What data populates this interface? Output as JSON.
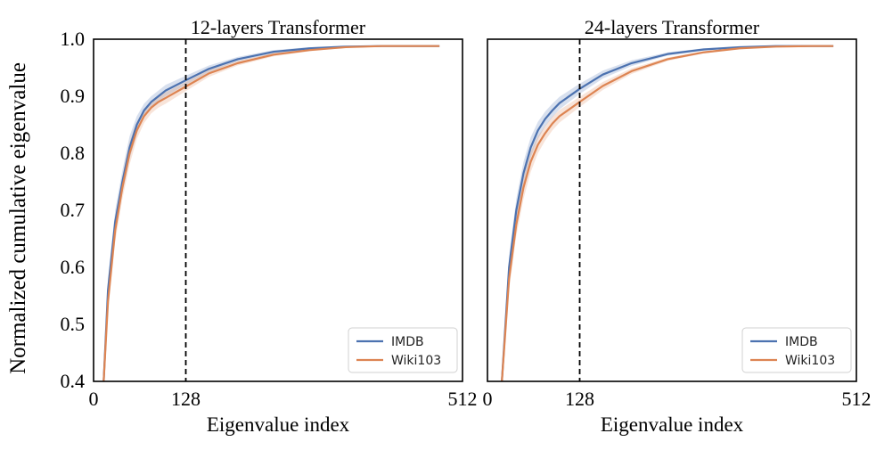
{
  "figure": {
    "ylabel": "Normalized cumulative eigenvalue"
  },
  "chart_data": [
    {
      "type": "line",
      "title": "12-layers Transformer",
      "xlabel": "Eigenvalue index",
      "ylabel": "Normalized cumulative eigenvalue",
      "xlim": [
        0,
        512
      ],
      "ylim": [
        0.4,
        1.0
      ],
      "xticks": [
        0,
        128,
        512
      ],
      "yticks": [
        0.4,
        0.5,
        0.6,
        0.7,
        0.8,
        0.9,
        1.0
      ],
      "xtick_labels": [
        "0",
        "128",
        "512"
      ],
      "ytick_labels": [
        "0.4",
        "0.5",
        "0.6",
        "0.7",
        "0.8",
        "0.9",
        "1.0"
      ],
      "vline_x": 128,
      "legend_position": "lower right",
      "x": [
        14,
        20,
        30,
        40,
        50,
        60,
        70,
        80,
        90,
        100,
        128,
        160,
        200,
        250,
        300,
        350,
        400,
        450,
        480
      ],
      "series": [
        {
          "name": "IMDB",
          "color": "#4c72b0",
          "values": [
            0.4,
            0.56,
            0.68,
            0.75,
            0.81,
            0.85,
            0.875,
            0.89,
            0.9,
            0.91,
            0.928,
            0.948,
            0.965,
            0.978,
            0.984,
            0.987,
            0.988,
            0.988,
            0.988
          ],
          "band": [
            0.012,
            0.02,
            0.02,
            0.02,
            0.02,
            0.015,
            0.012,
            0.01,
            0.01,
            0.01,
            0.008,
            0.006,
            0.004,
            0.003,
            0.002,
            0.001,
            0.001,
            0.001,
            0.001
          ]
        },
        {
          "name": "Wiki103",
          "color": "#dd8452",
          "values": [
            0.4,
            0.54,
            0.665,
            0.74,
            0.8,
            0.84,
            0.865,
            0.88,
            0.89,
            0.897,
            0.917,
            0.94,
            0.958,
            0.973,
            0.981,
            0.986,
            0.988,
            0.988,
            0.988
          ],
          "band": [
            0.012,
            0.02,
            0.02,
            0.02,
            0.02,
            0.015,
            0.012,
            0.01,
            0.01,
            0.01,
            0.008,
            0.006,
            0.004,
            0.003,
            0.002,
            0.001,
            0.001,
            0.001,
            0.001
          ]
        }
      ]
    },
    {
      "type": "line",
      "title": "24-layers Transformer",
      "xlabel": "Eigenvalue index",
      "ylabel": "",
      "xlim": [
        0,
        512
      ],
      "ylim": [
        0.4,
        1.0
      ],
      "xticks": [
        0,
        128,
        512
      ],
      "yticks": [],
      "xtick_labels": [
        "0",
        "128",
        "512"
      ],
      "ytick_labels": [],
      "vline_x": 128,
      "legend_position": "lower right",
      "x": [
        20,
        25,
        30,
        40,
        50,
        60,
        70,
        80,
        90,
        100,
        128,
        160,
        200,
        250,
        300,
        350,
        400,
        450,
        480
      ],
      "series": [
        {
          "name": "IMDB",
          "color": "#4c72b0",
          "values": [
            0.4,
            0.5,
            0.6,
            0.7,
            0.765,
            0.81,
            0.84,
            0.86,
            0.875,
            0.888,
            0.913,
            0.938,
            0.958,
            0.974,
            0.982,
            0.986,
            0.988,
            0.988,
            0.988
          ],
          "band": [
            0.01,
            0.015,
            0.02,
            0.02,
            0.02,
            0.018,
            0.015,
            0.013,
            0.012,
            0.011,
            0.009,
            0.007,
            0.005,
            0.003,
            0.002,
            0.001,
            0.001,
            0.001,
            0.001
          ]
        },
        {
          "name": "Wiki103",
          "color": "#dd8452",
          "values": [
            0.4,
            0.49,
            0.58,
            0.675,
            0.74,
            0.785,
            0.815,
            0.835,
            0.852,
            0.865,
            0.89,
            0.918,
            0.944,
            0.965,
            0.977,
            0.984,
            0.987,
            0.988,
            0.988
          ],
          "band": [
            0.01,
            0.015,
            0.02,
            0.02,
            0.02,
            0.018,
            0.015,
            0.013,
            0.012,
            0.011,
            0.009,
            0.007,
            0.005,
            0.003,
            0.002,
            0.001,
            0.001,
            0.001,
            0.001
          ]
        }
      ]
    }
  ]
}
